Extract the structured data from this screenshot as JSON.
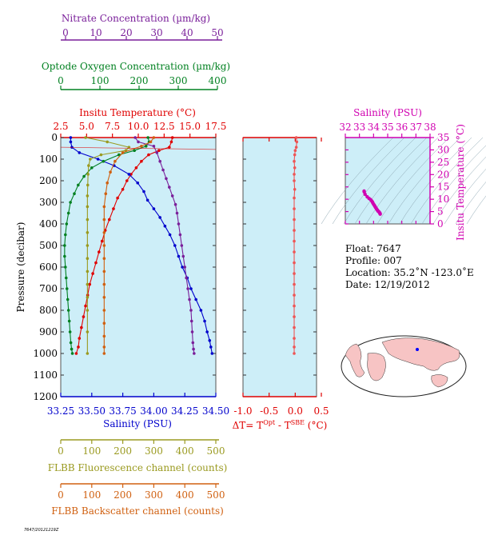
{
  "colors": {
    "temperature": "#e00000",
    "salinity": "#0000cc",
    "oxygen": "#008020",
    "nitrate": "#7a1f9a",
    "fluorescence": "#9a9a20",
    "backscatter": "#d06010",
    "ts_salinity": "#d000b0",
    "delta": "#ee5555",
    "plot_bg": "#cdeef8",
    "map_land": "#f7c4c4"
  },
  "axes": {
    "nitrate": {
      "label": "Nitrate Concentration (µm/kg)",
      "ticks": [
        "0",
        "10",
        "20",
        "30",
        "40",
        "50"
      ],
      "range": [
        0,
        50
      ]
    },
    "oxygen": {
      "label": "Optode Oxygen Concentration (µm/kg)",
      "ticks": [
        "0",
        "100",
        "200",
        "300",
        "400"
      ],
      "range": [
        0,
        400
      ]
    },
    "temperature": {
      "label": "Insitu Temperature (°C)",
      "ticks": [
        "2.5",
        "5.0",
        "7.5",
        "10.0",
        "12.5",
        "15.0",
        "17.5"
      ],
      "range": [
        2.5,
        17.5
      ]
    },
    "pressure": {
      "label": "Pressure (decibar)",
      "ticks": [
        "0",
        "100",
        "200",
        "300",
        "400",
        "500",
        "600",
        "700",
        "800",
        "900",
        "1000",
        "1100",
        "1200"
      ],
      "range": [
        0,
        1200
      ]
    },
    "salinity": {
      "label": "Salinity (PSU)",
      "ticks": [
        "33.25",
        "33.50",
        "33.75",
        "34.00",
        "34.25",
        "34.50"
      ],
      "range": [
        33.25,
        34.5
      ]
    },
    "fluorescence": {
      "label": "FLBB Fluorescence channel (counts)",
      "ticks": [
        "0",
        "100",
        "200",
        "300",
        "400",
        "500"
      ],
      "range": [
        0,
        500
      ]
    },
    "backscatter": {
      "label": "FLBB Backscatter channel (counts)",
      "ticks": [
        "0",
        "100",
        "200",
        "300",
        "400",
        "500"
      ],
      "range": [
        0,
        500
      ]
    },
    "delta": {
      "label_main": "ΔT= T",
      "label_sup1": "Opt",
      "label_mid": " - T",
      "label_sup2": "SBE",
      "label_end": " (°C)",
      "ticks": [
        "-1.0",
        "-0.5",
        "0.0",
        "0.5"
      ],
      "range": [
        -1.0,
        0.5
      ]
    },
    "ts_salinity": {
      "label": "Salinity (PSU)",
      "ticks": [
        "32",
        "33",
        "34",
        "35",
        "36",
        "37",
        "38"
      ],
      "range": [
        32,
        38
      ]
    },
    "ts_temperature": {
      "label": "Insitu Temperature (°C)",
      "ticks": [
        "0",
        "5",
        "10",
        "15",
        "20",
        "25",
        "30",
        "35"
      ],
      "range": [
        0,
        35
      ]
    }
  },
  "float_info": {
    "float": "Float:  7647",
    "profile": "Profile:  007",
    "location": "Location:  35.2˚N  -123.0˚E",
    "date": "Date:  12/19/2012"
  },
  "footer_text": "7647/20121219Z",
  "chart_data": [
    {
      "type": "line",
      "title": "",
      "y_axis": "Pressure (decibar)",
      "ylim": [
        1200,
        0
      ],
      "series": [
        {
          "name": "Insitu Temperature (°C)",
          "xlim": [
            2.5,
            17.5
          ],
          "x": [
            13.3,
            13.2,
            13.0,
            12.0,
            11.0,
            10.3,
            9.8,
            9.3,
            8.9,
            8.5,
            8.0,
            7.6,
            7.2,
            6.8,
            6.5,
            6.2,
            5.9,
            5.6,
            5.3,
            5.1,
            4.9,
            4.7,
            4.5,
            4.3,
            4.2,
            4.0
          ],
          "y": [
            0,
            20,
            45,
            60,
            80,
            110,
            140,
            170,
            200,
            240,
            280,
            330,
            380,
            430,
            480,
            530,
            580,
            630,
            680,
            730,
            780,
            830,
            880,
            930,
            970,
            1000
          ]
        },
        {
          "name": "Salinity (PSU)",
          "xlim": [
            33.25,
            34.5
          ],
          "x": [
            33.33,
            33.33,
            33.34,
            33.4,
            33.55,
            33.68,
            33.8,
            33.87,
            33.92,
            33.95,
            34.0,
            34.05,
            34.09,
            34.13,
            34.17,
            34.2,
            34.23,
            34.27,
            34.3,
            34.34,
            34.38,
            34.41,
            34.43,
            34.45,
            34.46,
            34.47
          ],
          "y": [
            0,
            20,
            45,
            70,
            100,
            130,
            170,
            210,
            250,
            290,
            330,
            370,
            410,
            450,
            500,
            550,
            600,
            650,
            700,
            750,
            800,
            850,
            900,
            940,
            970,
            1000
          ]
        },
        {
          "name": "Optode Oxygen Concentration (µm/kg)",
          "xlim": [
            0,
            400
          ],
          "x": [
            225,
            228,
            220,
            190,
            150,
            110,
            80,
            60,
            45,
            35,
            25,
            20,
            15,
            12,
            10,
            10,
            12,
            14,
            16,
            18,
            20,
            22,
            24,
            26,
            28,
            30
          ],
          "y": [
            0,
            20,
            40,
            60,
            80,
            110,
            140,
            180,
            220,
            260,
            300,
            350,
            400,
            450,
            500,
            550,
            600,
            650,
            700,
            750,
            800,
            850,
            900,
            950,
            980,
            1000
          ]
        },
        {
          "name": "Nitrate Concentration (µm/kg)",
          "xlim": [
            0,
            50
          ],
          "x": [
            24,
            25,
            30,
            31,
            32,
            33,
            34,
            35,
            36,
            37,
            37.5,
            38,
            38.5,
            39,
            39.5,
            40,
            40.5,
            41,
            41.5,
            42,
            42.2,
            42.4,
            42.6,
            42.8,
            43
          ],
          "y": [
            0,
            20,
            40,
            70,
            110,
            150,
            190,
            230,
            270,
            310,
            350,
            400,
            450,
            500,
            550,
            600,
            650,
            700,
            750,
            800,
            850,
            900,
            950,
            980,
            1000
          ]
        },
        {
          "name": "FLBB Fluorescence channel (counts)",
          "xlim": [
            0,
            500
          ],
          "x": [
            80,
            150,
            220,
            210,
            130,
            95,
            90,
            88,
            87,
            86,
            86,
            86,
            86,
            86,
            86,
            86,
            86,
            86,
            86,
            86,
            86
          ],
          "y": [
            0,
            20,
            45,
            60,
            80,
            100,
            130,
            170,
            220,
            270,
            320,
            380,
            440,
            500,
            560,
            620,
            680,
            740,
            800,
            900,
            1000
          ]
        },
        {
          "name": "FLBB Backscatter channel (counts)",
          "xlim": [
            0,
            500
          ],
          "x": [
            300,
            290,
            260,
            200,
            175,
            160,
            150,
            145,
            140,
            140,
            140,
            140,
            140,
            140,
            140,
            140,
            140,
            140,
            140,
            140,
            140
          ],
          "y": [
            0,
            20,
            40,
            70,
            110,
            160,
            210,
            260,
            320,
            380,
            440,
            500,
            560,
            620,
            680,
            740,
            800,
            860,
            920,
            970,
            1000
          ]
        }
      ]
    },
    {
      "type": "line",
      "title": "",
      "xlabel": "ΔT= TOpt - TSBE (°C)",
      "xlim": [
        -1.0,
        0.5
      ],
      "ylim": [
        1200,
        0
      ],
      "series": [
        {
          "name": "ΔT",
          "x": [
            0.02,
            0.03,
            0.02,
            0.0,
            -0.01,
            -0.02,
            -0.01,
            -0.02,
            -0.02,
            -0.01,
            -0.02,
            -0.02,
            -0.02,
            -0.02,
            -0.02,
            -0.02,
            -0.02,
            -0.02,
            -0.02,
            -0.02,
            -0.02,
            -0.02,
            -0.02,
            -0.02,
            -0.02,
            -0.02
          ],
          "y": [
            0,
            20,
            45,
            60,
            80,
            110,
            140,
            170,
            200,
            240,
            280,
            330,
            380,
            430,
            480,
            530,
            580,
            630,
            680,
            730,
            780,
            830,
            880,
            930,
            970,
            1000
          ]
        }
      ]
    },
    {
      "type": "scatter",
      "title": "",
      "xlabel": "Salinity (PSU)",
      "ylabel": "Insitu Temperature (°C)",
      "xlim": [
        32,
        38
      ],
      "ylim": [
        0,
        35
      ],
      "series": [
        {
          "name": "T-S",
          "x": [
            33.33,
            33.34,
            33.4,
            33.55,
            33.68,
            33.8,
            33.87,
            33.92,
            33.95,
            34.0,
            34.05,
            34.09,
            34.13,
            34.17,
            34.2,
            34.23,
            34.27,
            34.3,
            34.34,
            34.38,
            34.41,
            34.43,
            34.45,
            34.46,
            34.47
          ],
          "y": [
            13.3,
            13.0,
            12.0,
            11.0,
            10.3,
            9.8,
            9.3,
            8.9,
            8.5,
            8.0,
            7.6,
            7.2,
            6.8,
            6.5,
            6.2,
            5.9,
            5.6,
            5.3,
            5.1,
            4.9,
            4.7,
            4.5,
            4.3,
            4.2,
            4.0
          ]
        }
      ]
    }
  ]
}
